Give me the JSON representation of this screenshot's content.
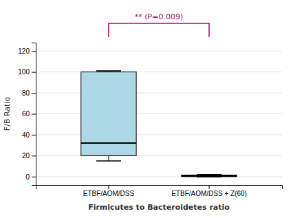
{
  "chart_data": {
    "type": "box",
    "xlabel": "Firmicutes to Bacteroidetes ratio",
    "ylabel": "F/B Ratio",
    "categories": [
      "ETBF/AOM/DSS",
      "ETBF/AOM/DSS + Z(60)"
    ],
    "boxes": [
      {
        "q1": 20,
        "median": 32,
        "q3": 100,
        "whisker_low": 15,
        "whisker_high": 101
      },
      {
        "q1": 0.0,
        "median": 0.5,
        "q3": 1.5,
        "whisker_low": -0.3,
        "whisker_high": 2.0
      }
    ],
    "color": "#add8e6",
    "ylim": [
      -8,
      128
    ],
    "yticks": [
      0,
      20,
      40,
      60,
      80,
      100,
      120
    ],
    "grid": true,
    "annotation": {
      "text": "** (P=0.009)",
      "color": "#b5006e"
    }
  }
}
